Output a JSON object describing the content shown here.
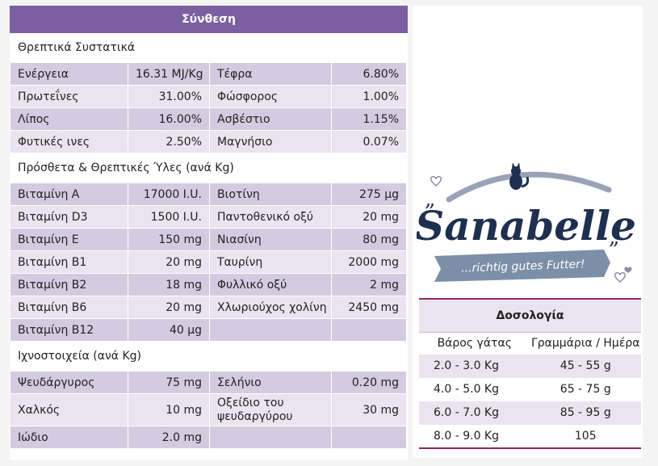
{
  "composition": {
    "title": "Σύνθεση",
    "sections": [
      {
        "title": "Θρεπτικά Συστατικά",
        "rows": [
          [
            "Ενέργεια",
            "16.31 MJ/Kg",
            "Τέφρα",
            "6.80%"
          ],
          [
            "Πρωτεΐνες",
            "31.00%",
            "Φώσφορος",
            "1.00%"
          ],
          [
            "Λίπος",
            "16.00%",
            "Ασβέστιο",
            "1.15%"
          ],
          [
            "Φυτικές ινες",
            "2.50%",
            "Μαγνήσιο",
            "0.07%"
          ]
        ]
      },
      {
        "title": "Πρόσθετα & Θρεπτικές Ύλες (ανά Kg)",
        "rows": [
          [
            "Βιταμίνη A",
            "17000 I.U.",
            "Βιοτίνη",
            "275 μg"
          ],
          [
            "Βιταμίνη D3",
            "1500 I.U.",
            "Παντοθενικό οξύ",
            "20 mg"
          ],
          [
            "Βιταμίνη E",
            "150 mg",
            "Νιασίνη",
            "80 mg"
          ],
          [
            "Βιταμίνη B1",
            "20 mg",
            "Ταυρίνη",
            "2000 mg"
          ],
          [
            "Βιταμίνη B2",
            "18 mg",
            "Φυλλικό οξύ",
            "2 mg"
          ],
          [
            "Βιταμίνη B6",
            "20 mg",
            "Χλωριούχος χολίνη",
            "2450 mg"
          ],
          [
            "Βιταμίνη B12",
            "40 μg",
            "",
            ""
          ]
        ]
      },
      {
        "title": "Ιχνοστοιχεία (ανά Kg)",
        "rows": [
          [
            "Ψευδάργυρος",
            "75 mg",
            "Σελήνιο",
            "0.20 mg"
          ],
          [
            "Χαλκός",
            "10 mg",
            "Οξείδιο του ψευδαργύρου",
            "30 mg"
          ],
          [
            "Ιώδιο",
            "2.0 mg",
            "",
            ""
          ]
        ]
      }
    ]
  },
  "logo": {
    "brand": "Sanabelle",
    "tagline": "...richtig gutes Futter!"
  },
  "dosage": {
    "title": "Δοσολογία",
    "headers": [
      "Βάρος γάτας",
      "Γραμμάρια / Ημέρα"
    ],
    "rows": [
      [
        "2.0 - 3.0 Kg",
        "45 - 55 g"
      ],
      [
        "4.0 - 5.0 Kg",
        "65 - 75 g"
      ],
      [
        "6.0 - 7.0 Kg",
        "85 - 95 g"
      ],
      [
        "8.0 - 9.0 Kg",
        "105"
      ]
    ]
  },
  "colors": {
    "header": "#7b5fa0",
    "row_light": "#e9e4ef",
    "row_dark": "#d4cbe1",
    "accent": "#8a2a5c",
    "logo_navy": "#1f2f4f",
    "logo_ribbon": "#7b8fa8"
  }
}
